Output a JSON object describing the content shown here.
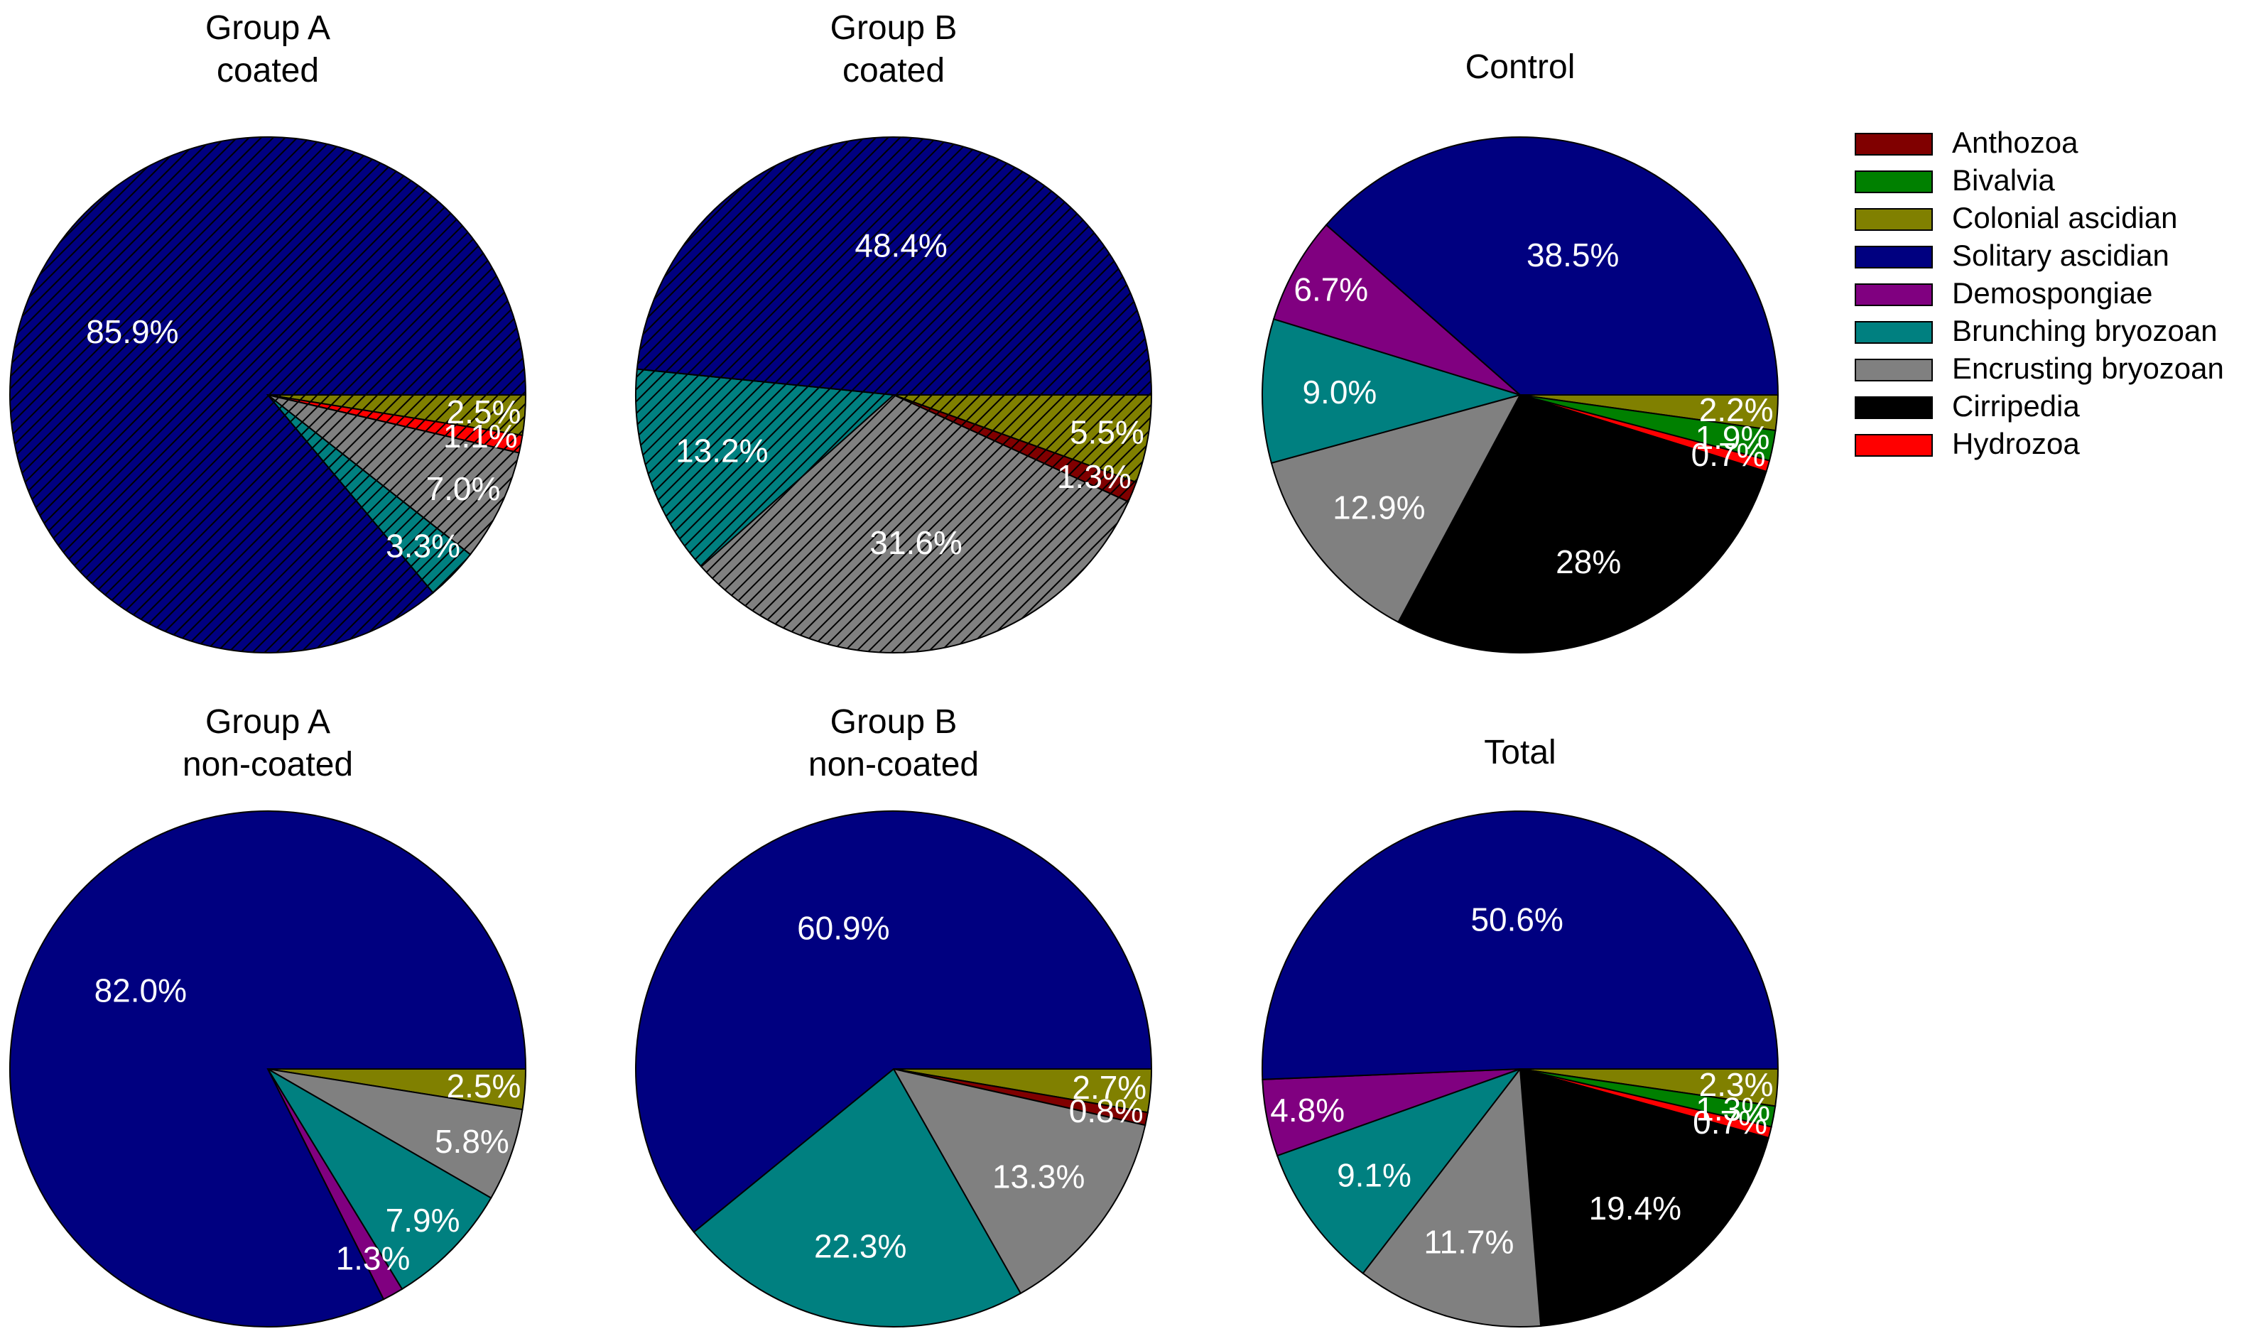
{
  "colors": {
    "Anthozoa": "#800000",
    "Bivalvia": "#008000",
    "Colonial ascidian": "#808000",
    "Solitary ascidian": "#000080",
    "Demospongiae": "#800080",
    "Brunching bryozoan": "#008080",
    "Encrusting bryozoan": "#808080",
    "Cirripedia": "#000000",
    "Hydrozoa": "#ff0000"
  },
  "legend": {
    "entries": [
      "Anthozoa",
      "Bivalvia",
      "Colonial ascidian",
      "Solitary ascidian",
      "Demospongiae",
      "Brunching bryozoan",
      "Encrusting bryozoan",
      "Cirripedia",
      "Hydrozoa"
    ]
  },
  "chart_data": [
    {
      "type": "pie",
      "title_lines": [
        "Group A",
        "coated"
      ],
      "hatched": true,
      "slices": [
        {
          "category": "Colonial ascidian",
          "value": 2.5,
          "label": "2.5%"
        },
        {
          "category": "Hydrozoa",
          "value": 1.1,
          "label": "1.1%"
        },
        {
          "category": "Encrusting bryozoan",
          "value": 7.0,
          "label": "7.0%"
        },
        {
          "category": "Brunching bryozoan",
          "value": 3.3,
          "label": "3.3%"
        },
        {
          "category": "Solitary ascidian",
          "value": 85.9,
          "label": "85.9%"
        }
      ]
    },
    {
      "type": "pie",
      "title_lines": [
        "Group B",
        "coated"
      ],
      "hatched": true,
      "slices": [
        {
          "category": "Colonial ascidian",
          "value": 5.5,
          "label": "5.5%"
        },
        {
          "category": "Anthozoa",
          "value": 1.3,
          "label": "1.3%"
        },
        {
          "category": "Encrusting bryozoan",
          "value": 31.6,
          "label": "31.6%"
        },
        {
          "category": "Brunching bryozoan",
          "value": 13.2,
          "label": "13.2%"
        },
        {
          "category": "Solitary ascidian",
          "value": 48.4,
          "label": "48.4%"
        }
      ]
    },
    {
      "type": "pie",
      "title_lines": [
        "Control"
      ],
      "hatched": false,
      "slices": [
        {
          "category": "Colonial ascidian",
          "value": 2.2,
          "label": "2.2%"
        },
        {
          "category": "Bivalvia",
          "value": 1.9,
          "label": "1.9%"
        },
        {
          "category": "Hydrozoa",
          "value": 0.7,
          "label": "0.7%"
        },
        {
          "category": "Cirripedia",
          "value": 28,
          "label": "28%"
        },
        {
          "category": "Encrusting bryozoan",
          "value": 12.9,
          "label": "12.9%"
        },
        {
          "category": "Brunching bryozoan",
          "value": 9.0,
          "label": "9.0%"
        },
        {
          "category": "Demospongiae",
          "value": 6.7,
          "label": "6.7%"
        },
        {
          "category": "Solitary ascidian",
          "value": 38.5,
          "label": "38.5%"
        }
      ]
    },
    {
      "type": "pie",
      "title_lines": [
        "Group A",
        "non-coated"
      ],
      "hatched": false,
      "slices": [
        {
          "category": "Colonial ascidian",
          "value": 2.5,
          "label": "2.5%"
        },
        {
          "category": "Encrusting bryozoan",
          "value": 5.8,
          "label": "5.8%"
        },
        {
          "category": "Brunching bryozoan",
          "value": 7.9,
          "label": "7.9%"
        },
        {
          "category": "Demospongiae",
          "value": 1.3,
          "label": "1.3%"
        },
        {
          "category": "Solitary ascidian",
          "value": 82.0,
          "label": "82.0%"
        }
      ]
    },
    {
      "type": "pie",
      "title_lines": [
        "Group B",
        "non-coated"
      ],
      "hatched": false,
      "slices": [
        {
          "category": "Colonial ascidian",
          "value": 2.7,
          "label": "2.7%"
        },
        {
          "category": "Anthozoa",
          "value": 0.8,
          "label": "0.8%"
        },
        {
          "category": "Encrusting bryozoan",
          "value": 13.3,
          "label": "13.3%"
        },
        {
          "category": "Brunching bryozoan",
          "value": 22.3,
          "label": "22.3%"
        },
        {
          "category": "Solitary ascidian",
          "value": 60.9,
          "label": "60.9%"
        }
      ]
    },
    {
      "type": "pie",
      "title_lines": [
        "Total"
      ],
      "hatched": false,
      "slices": [
        {
          "category": "Colonial ascidian",
          "value": 2.3,
          "label": "2.3%"
        },
        {
          "category": "Bivalvia",
          "value": 1.3,
          "label": "1.3%"
        },
        {
          "category": "Hydrozoa",
          "value": 0.7,
          "label": "0.7%"
        },
        {
          "category": "Cirripedia",
          "value": 19.4,
          "label": "19.4%"
        },
        {
          "category": "Encrusting bryozoan",
          "value": 11.7,
          "label": "11.7%"
        },
        {
          "category": "Brunching bryozoan",
          "value": 9.1,
          "label": "9.1%"
        },
        {
          "category": "Demospongiae",
          "value": 4.8,
          "label": "4.8%"
        },
        {
          "category": "Solitary ascidian",
          "value": 50.6,
          "label": "50.6%"
        }
      ]
    }
  ]
}
